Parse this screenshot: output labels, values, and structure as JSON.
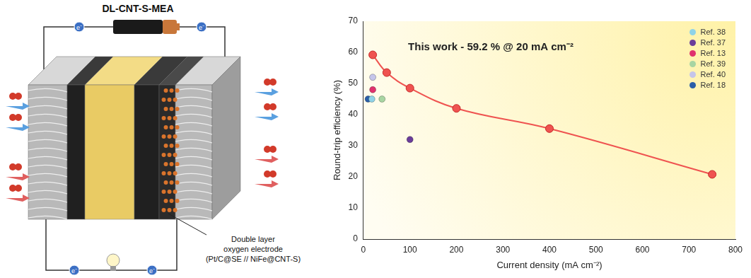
{
  "diagram": {
    "title": "DL-CNT-S-MEA",
    "electron_labels": [
      "e⁻",
      "e⁻",
      "e⁻",
      "e⁻"
    ],
    "electrode_label": [
      "Double layer",
      "oxygen electrode",
      "(Pt/C@SE // NiFe@CNT-S)"
    ]
  },
  "chart_data": {
    "type": "scatter",
    "x_label": "Current density (mA cm⁻²)",
    "y_label": "Round-trip efficiency (%)",
    "annotation": "This work - 59.2 % @ 20 mA cm⁻²",
    "xlim": [
      0,
      800
    ],
    "xticks": [
      0,
      100,
      200,
      300,
      400,
      500,
      600,
      700,
      800
    ],
    "ylim": [
      0,
      70
    ],
    "yticks": [
      0,
      10,
      20,
      30,
      40,
      50,
      60,
      70
    ],
    "grid": false,
    "legend": "upper right",
    "series": [
      {
        "type": "line",
        "color": "#ef5350",
        "marker": "circle",
        "x": [
          20,
          50,
          100,
          200,
          400,
          750
        ],
        "values": [
          59.2,
          53.5,
          48.5,
          42,
          35.5,
          20.8
        ]
      },
      {
        "name": "Ref. 38",
        "color": "#8fd3e8",
        "marker": "circle",
        "x": [
          18
        ],
        "values": [
          45
        ]
      },
      {
        "name": "Ref. 37",
        "color": "#6a3d9a",
        "marker": "circle",
        "x": [
          100
        ],
        "values": [
          32
        ]
      },
      {
        "name": "Ref. 13",
        "color": "#e0336e",
        "marker": "circle",
        "x": [
          20
        ],
        "values": [
          48
        ]
      },
      {
        "name": "Ref. 39",
        "color": "#a8d5a2",
        "marker": "circle",
        "x": [
          40
        ],
        "values": [
          45
        ]
      },
      {
        "name": "Ref. 40",
        "color": "#c5c5ea",
        "marker": "circle",
        "x": [
          20
        ],
        "values": [
          52
        ]
      },
      {
        "name": "Ref. 18",
        "color": "#2a5ea8",
        "marker": "circle",
        "x": [
          10
        ],
        "values": [
          45
        ]
      }
    ]
  }
}
